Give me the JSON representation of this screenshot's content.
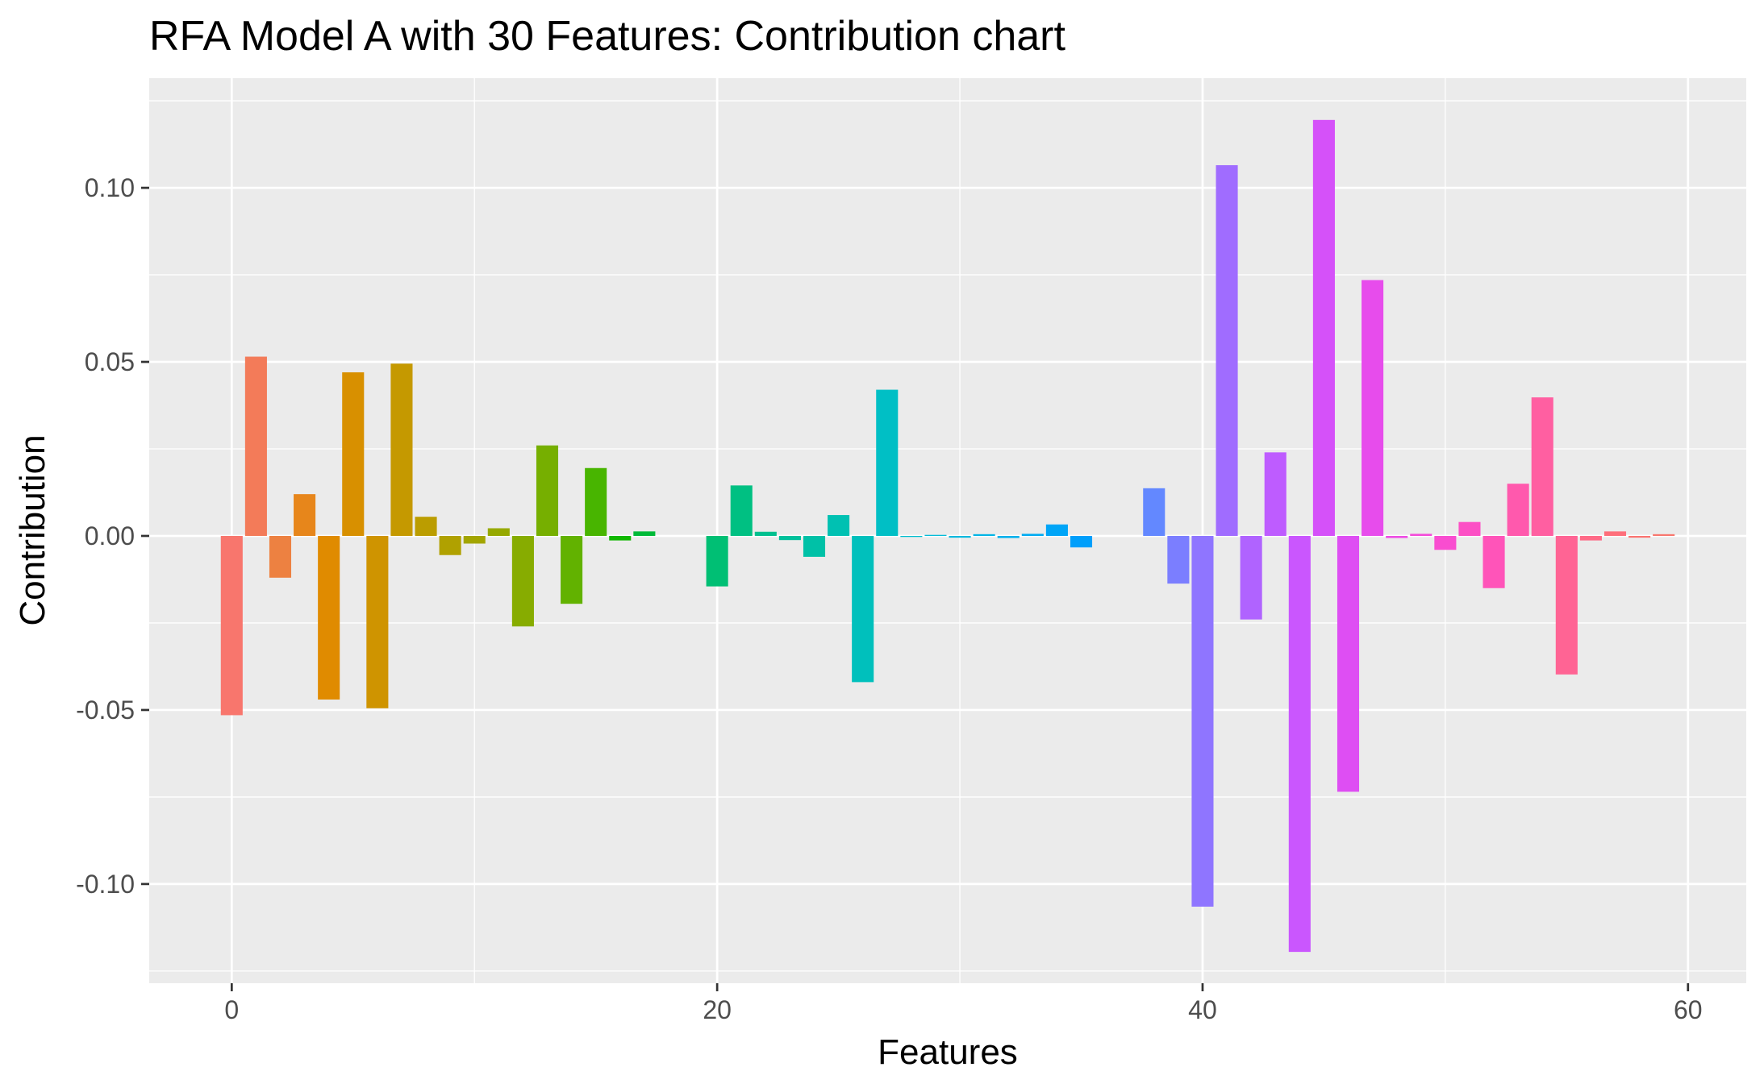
{
  "chart_data": {
    "type": "bar",
    "title": "RFA Model A with 30 Features: Contribution chart",
    "xlabel": "Features",
    "ylabel": "Contribution",
    "xlim": [
      -3.4,
      62.4
    ],
    "ylim": [
      -0.1285,
      0.1315
    ],
    "x_ticks": [
      0,
      20,
      40,
      60
    ],
    "x_tick_labels": [
      "0",
      "20",
      "40",
      "60"
    ],
    "y_ticks": [
      -0.1,
      -0.05,
      0.0,
      0.05,
      0.1
    ],
    "y_tick_labels": [
      "-0.10",
      "-0.05",
      "0.00",
      "0.05",
      "0.10"
    ],
    "grid": true,
    "legend": "none",
    "x": [
      0,
      1,
      2,
      3,
      4,
      5,
      6,
      7,
      8,
      9,
      10,
      11,
      12,
      13,
      14,
      15,
      16,
      17,
      18,
      19,
      20,
      21,
      22,
      23,
      24,
      25,
      26,
      27,
      28,
      29,
      30,
      31,
      32,
      33,
      34,
      35,
      36,
      37,
      38,
      39,
      40,
      41,
      42,
      43,
      44,
      45,
      46,
      47,
      48,
      49,
      50,
      51,
      52,
      53,
      54,
      55,
      56,
      57,
      58,
      59
    ],
    "values": [
      -0.0515,
      0.0515,
      -0.012,
      0.012,
      -0.047,
      0.047,
      -0.0495,
      0.0495,
      0.0055,
      -0.0055,
      -0.0022,
      0.0022,
      -0.026,
      0.026,
      -0.0195,
      0.0195,
      -0.0013,
      0.0013,
      0.0,
      0.0,
      -0.0145,
      0.0145,
      0.0012,
      -0.0012,
      -0.006,
      0.006,
      -0.042,
      0.042,
      -0.0003,
      0.0003,
      -0.0005,
      0.0005,
      -0.0006,
      0.0006,
      0.0033,
      -0.0033,
      0.0,
      0.0,
      0.0137,
      -0.0137,
      -0.1065,
      0.1065,
      -0.024,
      0.024,
      -0.1195,
      0.1195,
      -0.0735,
      0.0735,
      -0.0006,
      0.0006,
      -0.004,
      0.004,
      -0.015,
      0.015,
      0.0398,
      -0.0398,
      -0.0013,
      0.0013,
      -0.0005,
      0.0005
    ],
    "bar_colors": [
      "#F8766D",
      "#F37B59",
      "#ED8141",
      "#E7861B",
      "#E08B00",
      "#D89000",
      "#CF9400",
      "#C59900",
      "#BB9D00",
      "#B0A100",
      "#A3A500",
      "#96A900",
      "#87AC00",
      "#76AF00",
      "#62B200",
      "#48B500",
      "#11B800",
      "#00BA38",
      "#00BC51",
      "#00BD64",
      "#00BF74",
      "#00C082",
      "#00C08F",
      "#00C19C",
      "#00C1A7",
      "#00C1B2",
      "#00C0BC",
      "#00BFC5",
      "#00BDCE",
      "#00BBD7",
      "#00B8DE",
      "#00B4E6",
      "#00B0EC",
      "#00ABF2",
      "#00A5F7",
      "#009FFB",
      "#0099FE",
      "#3B91FF",
      "#6388FF",
      "#7B7EFF",
      "#8F75FF",
      "#A06CFF",
      "#B063FF",
      "#BE5CFF",
      "#CA56FE",
      "#D551F9",
      "#DE4EF3",
      "#E74CEC",
      "#EE4BE4",
      "#F44BDA",
      "#F94DD0",
      "#FC50C5",
      "#FF54B9",
      "#FF59AD",
      "#FF5FA1",
      "#FF6494",
      "#FF6A87",
      "#FE6F7B",
      "#FB7370",
      "#F8766D"
    ],
    "colors": {
      "panel_bg": "#EBEBEB",
      "grid_major": "#FFFFFF",
      "tick_label": "#4D4D4D"
    }
  }
}
